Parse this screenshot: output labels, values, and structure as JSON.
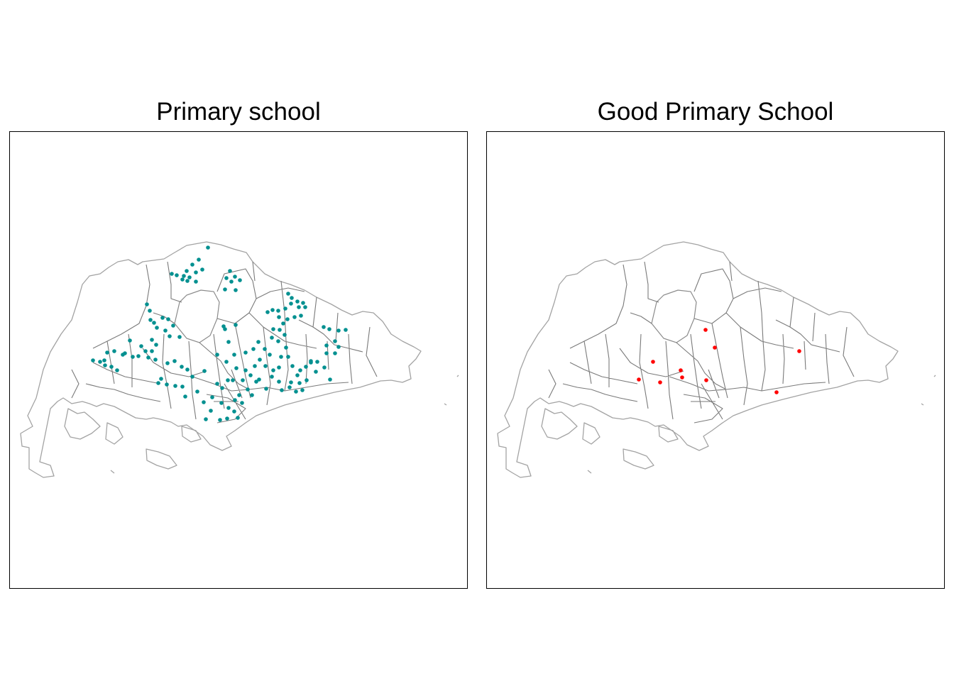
{
  "panels": [
    {
      "title": "Primary school",
      "point_color": "#009090",
      "points": [
        [
          292,
          348
        ],
        [
          279,
          365
        ],
        [
          270,
          372
        ],
        [
          284,
          379
        ],
        [
          262,
          381
        ],
        [
          275,
          383
        ],
        [
          258,
          388
        ],
        [
          241,
          385
        ],
        [
          248,
          387
        ],
        [
          266,
          390
        ],
        [
          275,
          396
        ],
        [
          256,
          393
        ],
        [
          263,
          395
        ],
        [
          323,
          381
        ],
        [
          330,
          389
        ],
        [
          318,
          391
        ],
        [
          337,
          394
        ],
        [
          316,
          407
        ],
        [
          331,
          408
        ],
        [
          325,
          396
        ],
        [
          206,
          428
        ],
        [
          210,
          437
        ],
        [
          211,
          450
        ],
        [
          216,
          454
        ],
        [
          228,
          447
        ],
        [
          236,
          449
        ],
        [
          220,
          461
        ],
        [
          243,
          458
        ],
        [
          232,
          465
        ],
        [
          252,
          474
        ],
        [
          238,
          473
        ],
        [
          213,
          478
        ],
        [
          219,
          485
        ],
        [
          213,
          494
        ],
        [
          218,
          506
        ],
        [
          208,
          503
        ],
        [
          204,
          494
        ],
        [
          194,
          501
        ],
        [
          198,
          487
        ],
        [
          182,
          479
        ],
        [
          175,
          497
        ],
        [
          172,
          499
        ],
        [
          160,
          494
        ],
        [
          150,
          496
        ],
        [
          146,
          507
        ],
        [
          140,
          509
        ],
        [
          130,
          507
        ],
        [
          147,
          514
        ],
        [
          156,
          516
        ],
        [
          164,
          521
        ],
        [
          186,
          502
        ],
        [
          235,
          511
        ],
        [
          245,
          508
        ],
        [
          255,
          516
        ],
        [
          226,
          533
        ],
        [
          234,
          541
        ],
        [
          222,
          539
        ],
        [
          246,
          543
        ],
        [
          256,
          544
        ],
        [
          260,
          558
        ],
        [
          277,
          551
        ],
        [
          270,
          530
        ],
        [
          287,
          522
        ],
        [
          263,
          520
        ],
        [
          286,
          566
        ],
        [
          298,
          559
        ],
        [
          311,
          567
        ],
        [
          296,
          578
        ],
        [
          289,
          590
        ],
        [
          309,
          591
        ],
        [
          319,
          589
        ],
        [
          321,
          574
        ],
        [
          329,
          579
        ],
        [
          334,
          588
        ],
        [
          330,
          563
        ],
        [
          340,
          567
        ],
        [
          336,
          556
        ],
        [
          348,
          548
        ],
        [
          354,
          556
        ],
        [
          341,
          535
        ],
        [
          327,
          535
        ],
        [
          320,
          535
        ],
        [
          312,
          546
        ],
        [
          305,
          540
        ],
        [
          305,
          499
        ],
        [
          318,
          509
        ],
        [
          329,
          499
        ],
        [
          345,
          496
        ],
        [
          356,
          491
        ],
        [
          363,
          481
        ],
        [
          372,
          491
        ],
        [
          379,
          499
        ],
        [
          373,
          515
        ],
        [
          358,
          515
        ],
        [
          345,
          521
        ],
        [
          332,
          518
        ],
        [
          352,
          528
        ],
        [
          364,
          534
        ],
        [
          384,
          521
        ],
        [
          382,
          530
        ],
        [
          392,
          537
        ],
        [
          396,
          549
        ],
        [
          374,
          547
        ],
        [
          360,
          537
        ],
        [
          365,
          506
        ],
        [
          331,
          457
        ],
        [
          314,
          459
        ],
        [
          321,
          481
        ],
        [
          316,
          463
        ],
        [
          405,
          413
        ],
        [
          410,
          419
        ],
        [
          418,
          424
        ],
        [
          426,
          426
        ],
        [
          429,
          432
        ],
        [
          420,
          432
        ],
        [
          409,
          427
        ],
        [
          401,
          434
        ],
        [
          391,
          437
        ],
        [
          383,
          436
        ],
        [
          376,
          439
        ],
        [
          392,
          446
        ],
        [
          404,
          449
        ],
        [
          414,
          446
        ],
        [
          423,
          444
        ],
        [
          398,
          455
        ],
        [
          393,
          464
        ],
        [
          400,
          471
        ],
        [
          384,
          463
        ],
        [
          382,
          475
        ],
        [
          391,
          480
        ],
        [
          402,
          489
        ],
        [
          405,
          502
        ],
        [
          411,
          515
        ],
        [
          422,
          521
        ],
        [
          418,
          528
        ],
        [
          409,
          538
        ],
        [
          431,
          535
        ],
        [
          425,
          549
        ],
        [
          416,
          551
        ],
        [
          407,
          545
        ],
        [
          392,
          517
        ],
        [
          395,
          502
        ],
        [
          455,
          460
        ],
        [
          463,
          463
        ],
        [
          476,
          465
        ],
        [
          486,
          464
        ],
        [
          471,
          480
        ],
        [
          459,
          486
        ],
        [
          476,
          488
        ],
        [
          471,
          497
        ],
        [
          459,
          497
        ],
        [
          446,
          509
        ],
        [
          437,
          508
        ],
        [
          430,
          516
        ],
        [
          456,
          517
        ],
        [
          444,
          523
        ],
        [
          464,
          534
        ],
        [
          421,
          539
        ],
        [
          437,
          510
        ]
      ]
    },
    {
      "title": "Good Primary School",
      "point_color": "#ff0000",
      "points": [
        [
          993,
          464
        ],
        [
          1006,
          489
        ],
        [
          1125,
          494
        ],
        [
          919,
          509
        ],
        [
          958,
          521
        ],
        [
          960,
          531
        ],
        [
          899,
          534
        ],
        [
          929,
          538
        ],
        [
          994,
          535
        ],
        [
          1093,
          552
        ]
      ]
    }
  ]
}
